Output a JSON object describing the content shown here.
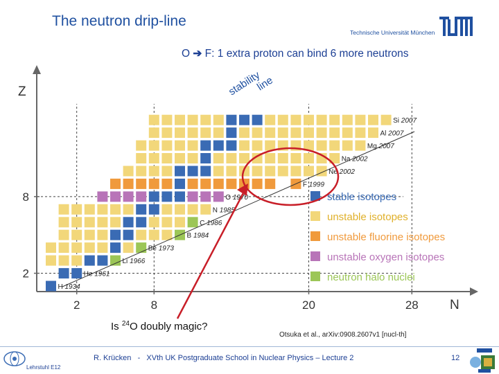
{
  "slide": {
    "title": "The neutron drip-line",
    "university": "Technische Universität München",
    "logo_text": "TUM",
    "headline_left": "O ",
    "headline_arrow": "➔",
    "headline_right": " F: 1 extra proton can bind 6 more neutrons",
    "question_pre": "Is ",
    "question_sup": "24",
    "question_post": "O doubly magic?",
    "citation": "Otsuka et al., arXiv:0908.2607v1 [nucl-th]",
    "footer": "R. Krücken   -   XVth UK Postgraduate School in Nuclear Physics – Lecture 2",
    "slide_number": "12",
    "department": "Lehrstuhl E12"
  },
  "chart_data": {
    "type": "nuclide-chart",
    "x_axis": {
      "label": "N",
      "ticks": [
        "2",
        "8",
        "20",
        "28"
      ]
    },
    "y_axis": {
      "label": "Z",
      "ticks": [
        "2",
        "8"
      ]
    },
    "stability_line_label": [
      "stability",
      "line"
    ],
    "colors": {
      "stable": "#3a6bb4",
      "unstable": "#f2d77a",
      "fluorine": "#f09a3c",
      "oxygen": "#b874b8",
      "halo": "#9cc657",
      "axis": "#666666",
      "circle": "#c81e28",
      "text_blue": "#1f50a0"
    },
    "legend": [
      {
        "key": "stable",
        "label": "stable isotopes"
      },
      {
        "key": "unstable",
        "label": "unstable isotopes"
      },
      {
        "key": "fluorine",
        "label": "unstable fluorine isotopes"
      },
      {
        "key": "oxygen",
        "label": "unstable oxygen isotopes"
      },
      {
        "key": "halo",
        "label": "neutron halo nuclei"
      }
    ],
    "elements": [
      {
        "symbol": "H",
        "year": "1934",
        "z": 1
      },
      {
        "symbol": "He",
        "year": "1961",
        "z": 2
      },
      {
        "symbol": "Li",
        "year": "1966",
        "z": 3
      },
      {
        "symbol": "Be",
        "year": "1973",
        "z": 4
      },
      {
        "symbol": "B",
        "year": "1984",
        "z": 5
      },
      {
        "symbol": "C",
        "year": "1986",
        "z": 6
      },
      {
        "symbol": "N",
        "year": "1985",
        "z": 7
      },
      {
        "symbol": "O",
        "year": "1970",
        "z": 8
      },
      {
        "symbol": "F",
        "year": "1999",
        "z": 9
      },
      {
        "symbol": "Ne",
        "year": "2002",
        "z": 10
      },
      {
        "symbol": "Na",
        "year": "2002",
        "z": 11
      },
      {
        "symbol": "Mg",
        "year": "2007",
        "z": 12
      },
      {
        "symbol": "Al",
        "year": "2007",
        "z": 13
      },
      {
        "symbol": "Si",
        "year": "2007",
        "z": 14
      }
    ],
    "rows": [
      {
        "z": 1,
        "nmin": 0,
        "nmax": 0,
        "stable": [
          0
        ],
        "halo": []
      },
      {
        "z": 2,
        "nmin": 1,
        "nmax": 2,
        "stable": [
          1,
          2
        ],
        "halo": []
      },
      {
        "z": 3,
        "nmin": 0,
        "nmax": 5,
        "stable": [
          3,
          4
        ],
        "halo": [
          5
        ]
      },
      {
        "z": 4,
        "nmin": 0,
        "nmax": 7,
        "stable": [
          5
        ],
        "halo": [
          7
        ]
      },
      {
        "z": 5,
        "nmin": 1,
        "nmax": 10,
        "stable": [
          5,
          6
        ],
        "halo": [
          10
        ]
      },
      {
        "z": 6,
        "nmin": 1,
        "nmax": 11,
        "stable": [
          6,
          7
        ],
        "halo": [
          11
        ]
      },
      {
        "z": 7,
        "nmin": 1,
        "nmax": 12,
        "stable": [
          7,
          8
        ],
        "halo": []
      },
      {
        "z": 8,
        "nmin": 4,
        "nmax": 13,
        "stable": [
          8,
          9,
          10
        ],
        "halo": []
      },
      {
        "z": 9,
        "nmin": 5,
        "nmax": 19,
        "stable": [
          10
        ],
        "halo": [],
        "gap": [
          18
        ]
      },
      {
        "z": 10,
        "nmin": 6,
        "nmax": 21,
        "stable": [
          10,
          11,
          12
        ],
        "halo": []
      },
      {
        "z": 11,
        "nmin": 7,
        "nmax": 22,
        "stable": [
          12
        ],
        "halo": []
      },
      {
        "z": 12,
        "nmin": 7,
        "nmax": 24,
        "stable": [
          12,
          13,
          14
        ],
        "halo": []
      },
      {
        "z": 13,
        "nmin": 8,
        "nmax": 25,
        "stable": [
          14
        ],
        "halo": []
      },
      {
        "z": 14,
        "nmin": 8,
        "nmax": 26,
        "stable": [
          14,
          15,
          16
        ],
        "halo": []
      }
    ]
  }
}
